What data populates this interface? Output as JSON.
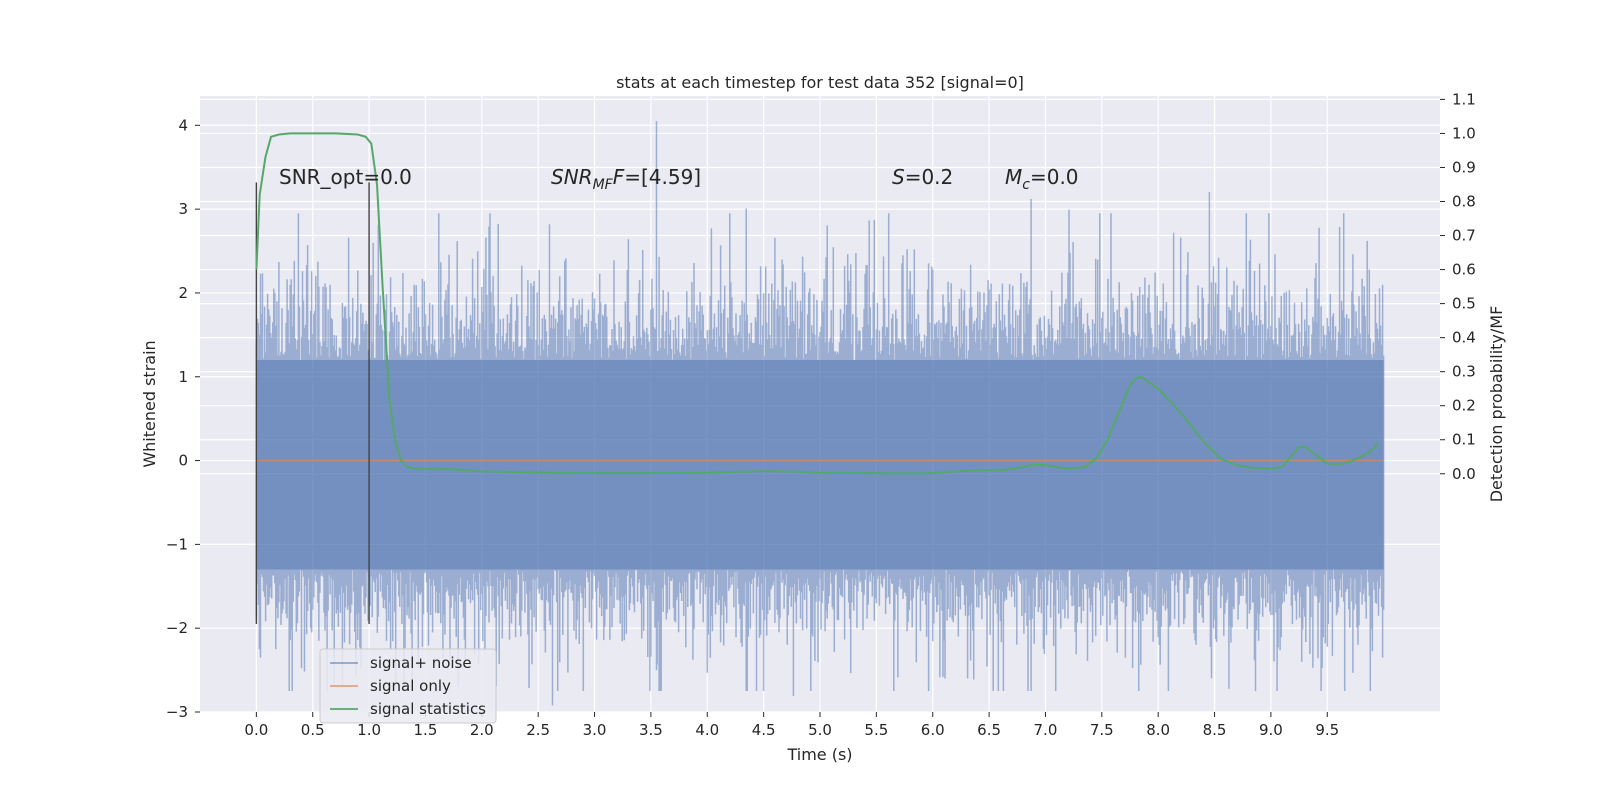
{
  "chart_data": {
    "type": "line",
    "title": "stats at each timestep for test data 352 [signal=0]",
    "xlabel": "Time (s)",
    "ylabel": "Whitened strain",
    "y2label": "Detection probability/MF",
    "xlim": [
      -0.5,
      10.5
    ],
    "ylim": [
      -3,
      4.35
    ],
    "y2lim": [
      -0.7,
      1.11
    ],
    "x_ticks": [
      "0.0",
      "0.5",
      "1.0",
      "1.5",
      "2.0",
      "2.5",
      "3.0",
      "3.5",
      "4.0",
      "4.5",
      "5.0",
      "5.5",
      "6.0",
      "6.5",
      "7.0",
      "7.5",
      "8.0",
      "8.5",
      "9.0",
      "9.5"
    ],
    "y_ticks": [
      "−3",
      "−2",
      "−1",
      "0",
      "1",
      "2",
      "3",
      "4"
    ],
    "y2_ticks": [
      "0.0",
      "0.1",
      "0.2",
      "0.3",
      "0.4",
      "0.5",
      "0.6",
      "0.7",
      "0.8",
      "0.9",
      "1.0",
      "1.1"
    ],
    "grid": true,
    "legend_position": "lower-left",
    "colors": {
      "noise": "#4c72b0",
      "signal": "#dd8452",
      "stats": "#55a868",
      "background": "#eaeaf2",
      "grid": "#ffffff",
      "vline": "#444444"
    },
    "series": [
      {
        "name": "signal+ noise",
        "axis": "left",
        "description_kind": "noise",
        "x_range": [
          0,
          10
        ],
        "typical_extent": [
          -1.35,
          1.25
        ],
        "peak_max": 4.05,
        "peak_min": -2.75
      },
      {
        "name": "signal only",
        "axis": "left",
        "x": [
          0,
          10
        ],
        "y": [
          0,
          0
        ]
      },
      {
        "name": "signal statistics",
        "axis": "right",
        "x": [
          0.0,
          0.03,
          0.08,
          0.13,
          0.2,
          0.3,
          0.5,
          0.7,
          0.9,
          0.97,
          1.02,
          1.07,
          1.12,
          1.18,
          1.23,
          1.28,
          1.33,
          1.4,
          1.5,
          1.65,
          1.8,
          2.0,
          2.3,
          2.6,
          3.0,
          3.5,
          4.0,
          4.3,
          4.5,
          4.7,
          5.0,
          5.4,
          5.8,
          6.0,
          6.2,
          6.4,
          6.6,
          6.8,
          6.9,
          7.0,
          7.2,
          7.35,
          7.45,
          7.55,
          7.65,
          7.75,
          7.8,
          7.85,
          8.0,
          8.2,
          8.4,
          8.55,
          8.7,
          8.85,
          9.0,
          9.1,
          9.15,
          9.2,
          9.25,
          9.3,
          9.4,
          9.5,
          9.6,
          9.7,
          9.8,
          9.9,
          9.95
        ],
        "y": [
          0.6,
          0.82,
          0.93,
          0.99,
          0.997,
          1.0,
          1.0,
          1.0,
          0.997,
          0.99,
          0.97,
          0.85,
          0.55,
          0.22,
          0.1,
          0.04,
          0.022,
          0.015,
          0.015,
          0.015,
          0.012,
          0.007,
          0.005,
          0.003,
          0.002,
          0.002,
          0.003,
          0.006,
          0.008,
          0.007,
          0.003,
          0.002,
          0.001,
          0.002,
          0.007,
          0.01,
          0.01,
          0.02,
          0.027,
          0.025,
          0.015,
          0.02,
          0.045,
          0.1,
          0.18,
          0.26,
          0.28,
          0.285,
          0.25,
          0.18,
          0.095,
          0.045,
          0.025,
          0.017,
          0.015,
          0.02,
          0.04,
          0.06,
          0.078,
          0.08,
          0.055,
          0.03,
          0.028,
          0.035,
          0.05,
          0.07,
          0.09
        ]
      }
    ],
    "vlines": [
      {
        "x": 0.0,
        "y_range": [
          -1.95,
          3.32
        ]
      },
      {
        "x": 1.0,
        "y_range": [
          -1.95,
          3.32
        ]
      }
    ],
    "annotations": {
      "snr_opt": "SNR_opt=0.0",
      "snr_mf_sym": "SNR",
      "snr_mf_sub": "MF",
      "snr_mf_sym2": "F",
      "snr_mf_val": "=[4.59]",
      "s_sym": "S",
      "s_val": "=0.2",
      "mc_sym": "M",
      "mc_sub": "c",
      "mc_val": "=0.0"
    }
  }
}
